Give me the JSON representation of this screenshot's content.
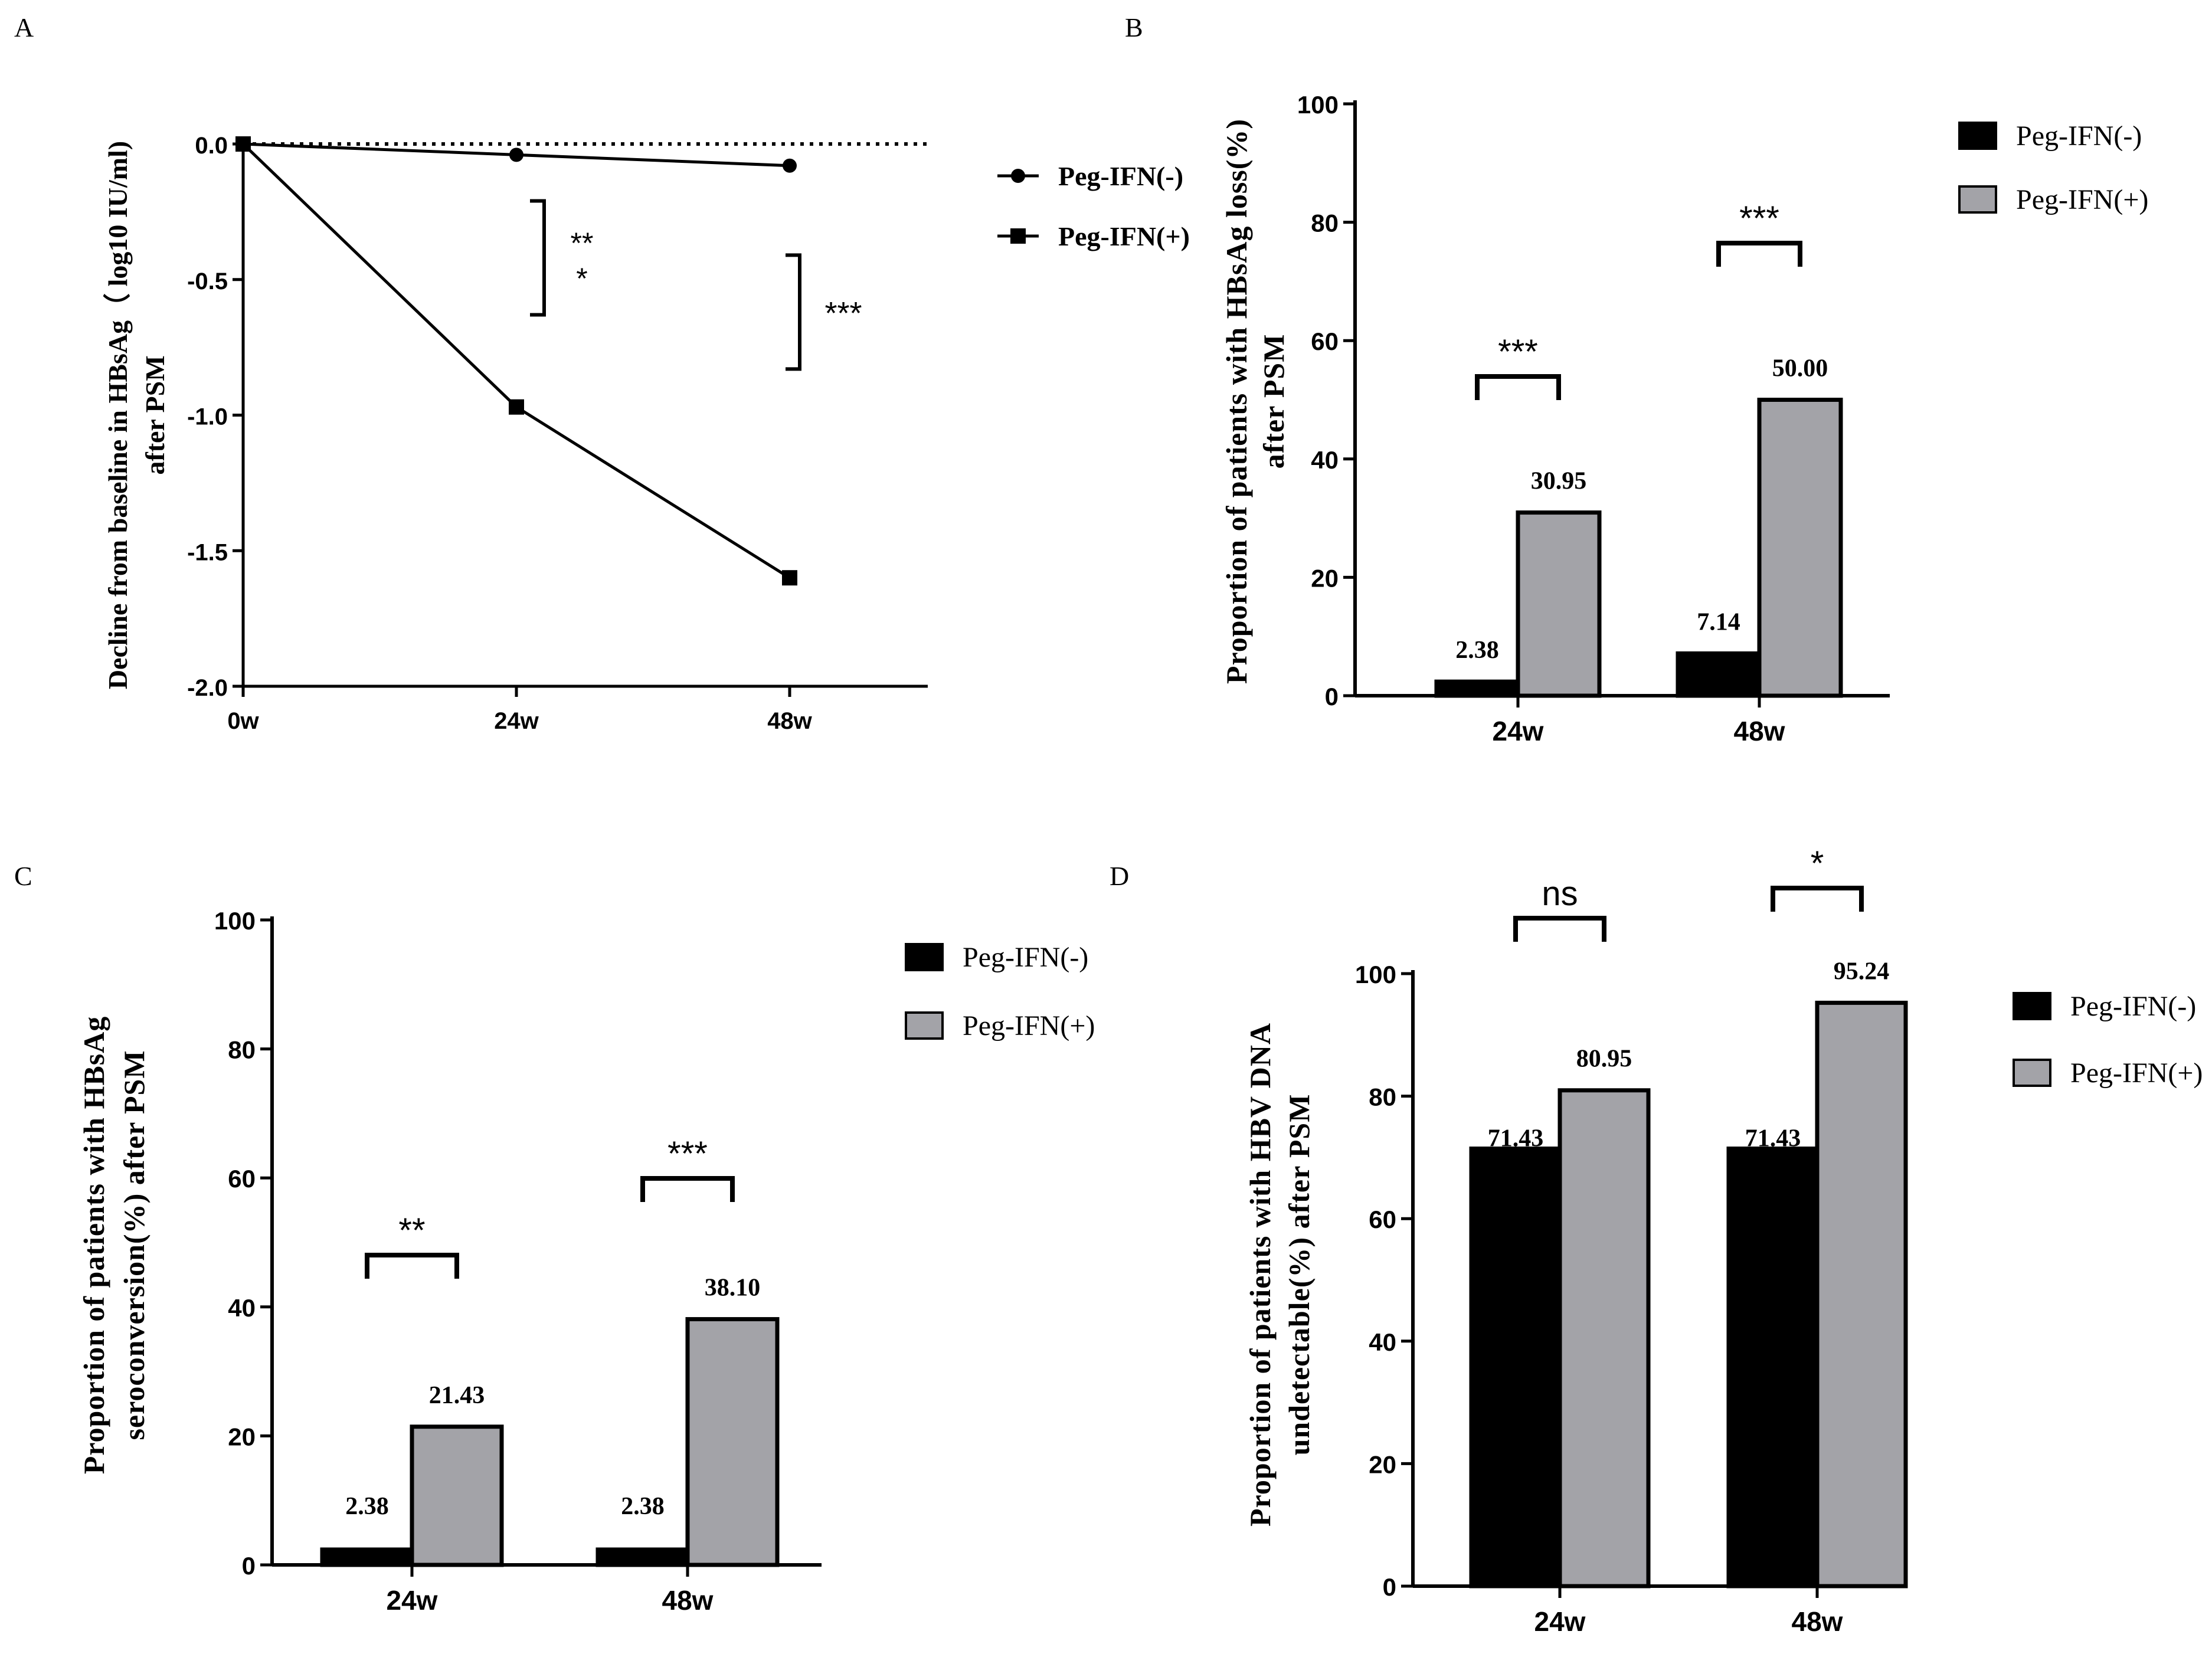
{
  "chart_data": [
    {
      "panel": "A",
      "type": "line",
      "x": [
        "0w",
        "24w",
        "48w"
      ],
      "series": [
        {
          "name": "Peg-IFN(-)",
          "marker": "circle",
          "values": [
            0.0,
            -0.04,
            -0.08
          ]
        },
        {
          "name": "Peg-IFN(+)",
          "marker": "square",
          "values": [
            0.0,
            -0.97,
            -1.6
          ]
        }
      ],
      "ylabel_lines": [
        "Decline from baseline in HBsAg（ log10 IU/ml)",
        "after PSM"
      ],
      "ylim": [
        -2.0,
        0.0
      ],
      "yticks": [
        "0.0",
        "-0.5",
        "-1.0",
        "-1.5",
        "-2.0"
      ],
      "reference_line": 0,
      "annotations": [
        {
          "label": "**",
          "label2": "*",
          "at": "24w",
          "from": -0.21,
          "to": -0.63
        },
        {
          "label": "***",
          "at": "48w",
          "from": -0.41,
          "to": -0.83
        }
      ]
    },
    {
      "panel": "B",
      "type": "bar",
      "categories": [
        "24w",
        "48w"
      ],
      "series": [
        {
          "name": "Peg-IFN(-)",
          "values": [
            2.38,
            7.14
          ],
          "labels": [
            "2.38",
            "7.14"
          ]
        },
        {
          "name": "Peg-IFN(+)",
          "values": [
            30.95,
            50.0
          ],
          "labels": [
            "30.95",
            "50.00"
          ]
        }
      ],
      "ylabel_lines": [
        "Proportion of patients with HBsAg loss(%)",
        "after PSM"
      ],
      "ylim": [
        0,
        100
      ],
      "yticks": [
        "0",
        "20",
        "40",
        "60",
        "80",
        "100"
      ],
      "significance": [
        "***",
        "***"
      ]
    },
    {
      "panel": "C",
      "type": "bar",
      "categories": [
        "24w",
        "48w"
      ],
      "series": [
        {
          "name": "Peg-IFN(-)",
          "values": [
            2.38,
            2.38
          ],
          "labels": [
            "2.38",
            "2.38"
          ]
        },
        {
          "name": "Peg-IFN(+)",
          "values": [
            21.43,
            38.1
          ],
          "labels": [
            "21.43",
            "38.10"
          ]
        }
      ],
      "ylabel_lines": [
        "Proportion of patients with HBsAg",
        "seroconversion(%) after PSM"
      ],
      "ylim": [
        0,
        100
      ],
      "yticks": [
        "0",
        "20",
        "40",
        "60",
        "80",
        "100"
      ],
      "significance": [
        "**",
        "***"
      ]
    },
    {
      "panel": "D",
      "type": "bar",
      "categories": [
        "24w",
        "48w"
      ],
      "series": [
        {
          "name": "Peg-IFN(-)",
          "values": [
            71.43,
            71.43
          ],
          "labels": [
            "71.43",
            "71.43"
          ]
        },
        {
          "name": "Peg-IFN(+)",
          "values": [
            80.95,
            95.24
          ],
          "labels": [
            "80.95",
            "95.24"
          ]
        }
      ],
      "ylabel_lines": [
        "Proportion of patients with HBV DNA",
        "undetectable(%) after PSM"
      ],
      "ylim": [
        0,
        100
      ],
      "yticks": [
        "0",
        "20",
        "40",
        "60",
        "80",
        "100"
      ],
      "significance": [
        "ns",
        "*"
      ]
    }
  ],
  "colors": {
    "neg": "#000000",
    "pos": "#a3a3a8",
    "line": "#000000"
  }
}
